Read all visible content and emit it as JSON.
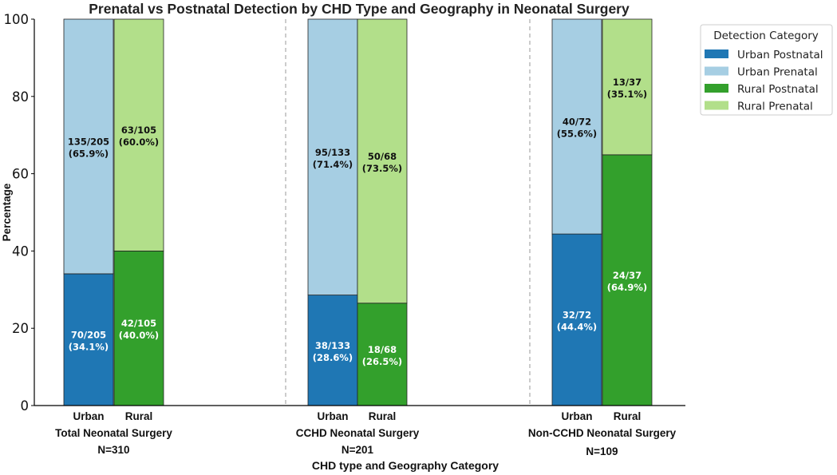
{
  "chart_data": {
    "type": "bar",
    "stacked": true,
    "title": "Prenatal vs Postnatal Detection by CHD Type and Geography in Neonatal Surgery",
    "xlabel": "CHD type and Geography Category",
    "ylabel": "Percentage",
    "ylim": [
      0,
      100
    ],
    "yticks": [
      0,
      20,
      40,
      60,
      80,
      100
    ],
    "grid": false,
    "legend": {
      "title": "Detection Category",
      "placement": "outside-top-right",
      "entries": [
        {
          "label": "Urban Postnatal",
          "color": "#1f77b4"
        },
        {
          "label": "Urban Prenatal",
          "color": "#a6cee3"
        },
        {
          "label": "Rural Postnatal",
          "color": "#33a02c"
        },
        {
          "label": "Rural Prenatal",
          "color": "#b2df8a"
        }
      ]
    },
    "groups": [
      {
        "name": "Total Neonatal Surgery",
        "n_label": "N=310",
        "bars": [
          {
            "category": "Urban",
            "postnatal": 34.1,
            "prenatal": 65.9,
            "postnatal_label": [
              "70/205",
              "(34.1%)"
            ],
            "prenatal_label": [
              "135/205",
              "(65.9%)"
            ]
          },
          {
            "category": "Rural",
            "postnatal": 40.0,
            "prenatal": 60.0,
            "postnatal_label": [
              "42/105",
              "(40.0%)"
            ],
            "prenatal_label": [
              "63/105",
              "(60.0%)"
            ]
          }
        ]
      },
      {
        "name": "CCHD Neonatal Surgery",
        "n_label": "N=201",
        "bars": [
          {
            "category": "Urban",
            "postnatal": 28.6,
            "prenatal": 71.4,
            "postnatal_label": [
              "38/133",
              "(28.6%)"
            ],
            "prenatal_label": [
              "95/133",
              "(71.4%)"
            ]
          },
          {
            "category": "Rural",
            "postnatal": 26.5,
            "prenatal": 73.5,
            "postnatal_label": [
              "18/68",
              "(26.5%)"
            ],
            "prenatal_label": [
              "50/68",
              "(73.5%)"
            ]
          }
        ]
      },
      {
        "name": "Non-CCHD Neonatal Surgery",
        "n_label": "N=109",
        "bars": [
          {
            "category": "Urban",
            "postnatal": 44.4,
            "prenatal": 55.6,
            "postnatal_label": [
              "32/72",
              "(44.4%)"
            ],
            "prenatal_label": [
              "40/72",
              "(55.6%)"
            ]
          },
          {
            "category": "Rural",
            "postnatal": 64.9,
            "prenatal": 35.1,
            "postnatal_label": [
              "24/37",
              "(64.9%)"
            ],
            "prenatal_label": [
              "13/37",
              "(35.1%)"
            ]
          }
        ]
      }
    ]
  }
}
